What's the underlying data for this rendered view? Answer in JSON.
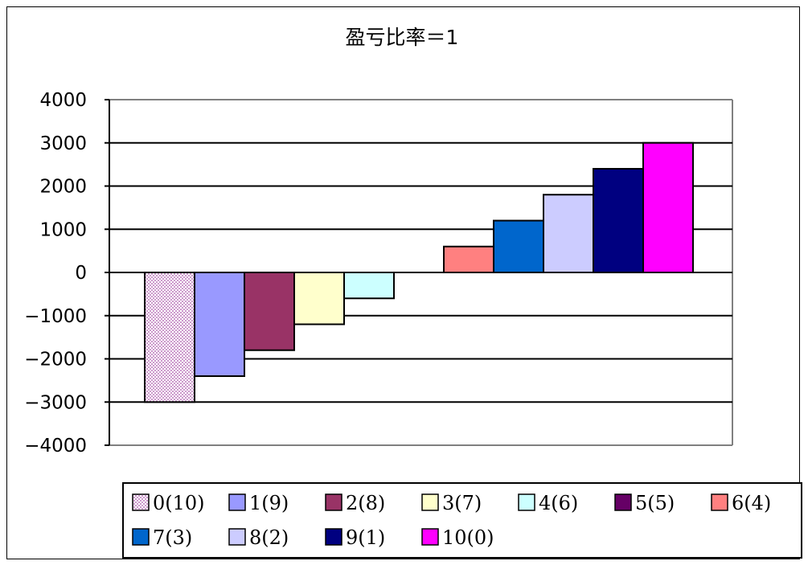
{
  "chart_data": {
    "type": "bar",
    "title": "盈亏比率＝1",
    "xlabel": "",
    "ylabel": "",
    "ylim": [
      -4000,
      4000
    ],
    "y_ticks": [
      "4000",
      "3000",
      "2000",
      "1000",
      "0",
      "-1000",
      "-2000",
      "-3000",
      "-4000"
    ],
    "grid": true,
    "legend_position": "bottom",
    "series": [
      {
        "name": "0(10)",
        "value": -3000,
        "color": "#cc99cc",
        "pattern": "checker"
      },
      {
        "name": "1(9)",
        "value": -2400,
        "color": "#9999ff"
      },
      {
        "name": "2(8)",
        "value": -1800,
        "color": "#993366"
      },
      {
        "name": "3(7)",
        "value": -1200,
        "color": "#ffffcc"
      },
      {
        "name": "4(6)",
        "value": -600,
        "color": "#ccffff"
      },
      {
        "name": "5(5)",
        "value": 0,
        "color": "#660066"
      },
      {
        "name": "6(4)",
        "value": 600,
        "color": "#ff8080"
      },
      {
        "name": "7(3)",
        "value": 1200,
        "color": "#0066cc"
      },
      {
        "name": "8(2)",
        "value": 1800,
        "color": "#ccccff"
      },
      {
        "name": "9(1)",
        "value": 2400,
        "color": "#000080"
      },
      {
        "name": "10(0)",
        "value": 3000,
        "color": "#ff00ff"
      }
    ]
  }
}
